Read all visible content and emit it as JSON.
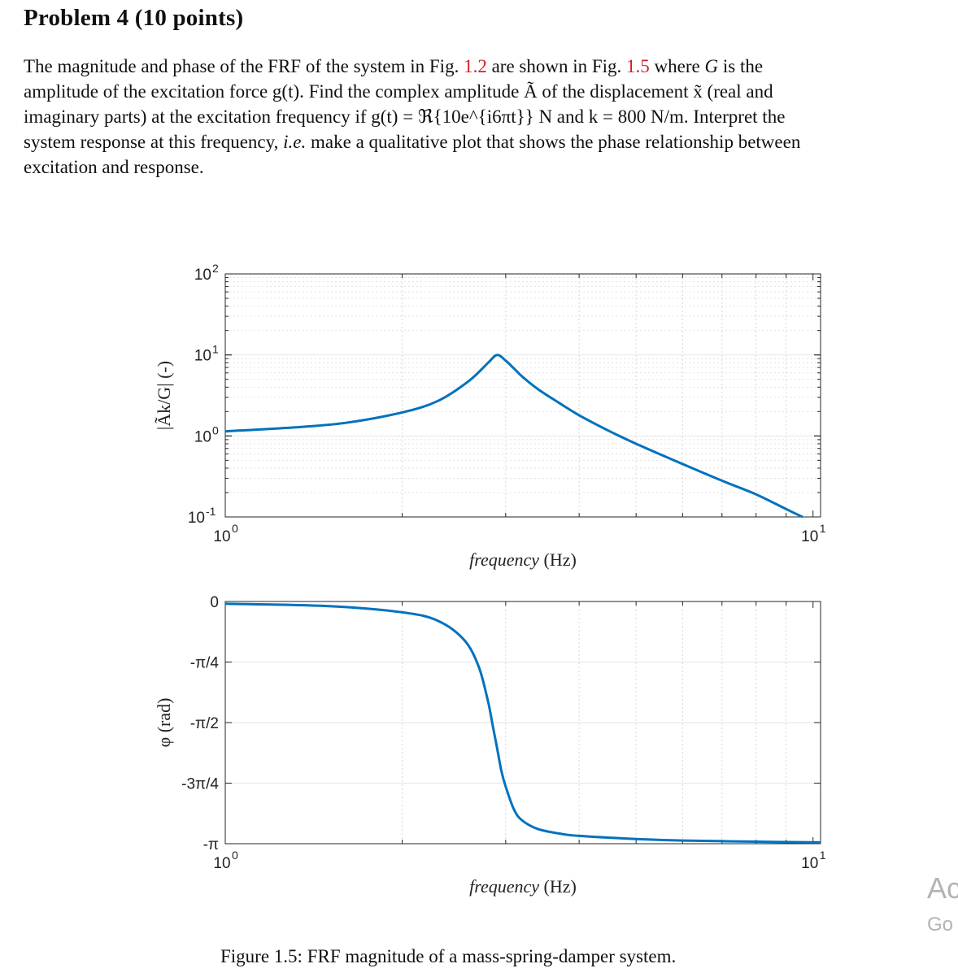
{
  "document": {
    "heading": "Problem 4 (10 points)",
    "paragraph": {
      "l1_a": "The magnitude and phase of the FRF of the system in Fig. ",
      "l1_ref1": "1.2",
      "l1_b": " are shown in Fig. ",
      "l1_ref2": "1.5",
      "l1_c": " where ",
      "l1_G": "G",
      "l1_d": " is the",
      "l2": "amplitude of the excitation force g(t). Find the complex amplitude Ã of the displacement x̃ (real and",
      "l3": "imaginary parts) at the excitation frequency if g(t) = ℜ{10e^{i6πt}} N and k = 800 N/m. Interpret the",
      "l4_a": "system response at this frequency, ",
      "l4_ie": "i.e.",
      "l4_b": " make a qualitative plot that shows the phase relationship between",
      "l5": "excitation and response."
    },
    "caption": "Figure 1.5: FRF magnitude of a mass-spring-damper system.",
    "watermark": {
      "line1": "Ac",
      "line2": "Go"
    }
  },
  "chart_data": [
    {
      "type": "line",
      "name": "magnitude",
      "x_scale": "log",
      "y_scale": "log",
      "xlim": [
        1,
        10.3
      ],
      "ylim": [
        0.1,
        100
      ],
      "xticks": [
        {
          "v": 1,
          "label": "10",
          "exp": "0"
        },
        {
          "v": 10,
          "label": "10",
          "exp": "1"
        }
      ],
      "yticks": [
        {
          "v": 100,
          "label": "10",
          "exp": "2"
        },
        {
          "v": 10,
          "label": "10",
          "exp": "1"
        },
        {
          "v": 1,
          "label": "10",
          "exp": "0"
        },
        {
          "v": 0.1,
          "label": "10",
          "exp": "-1"
        }
      ],
      "xlabel": "frequency (Hz)",
      "ylabel": "|Ãk/G| (-)",
      "grid": true,
      "line_color": "#0072bd",
      "x": [
        1.0,
        1.3,
        1.6,
        2.0,
        2.3,
        2.6,
        2.8,
        2.9,
        3.0,
        3.1,
        3.2,
        3.4,
        3.7,
        4.0,
        4.5,
        5.0,
        6.0,
        7.0,
        8.0,
        9.0,
        9.6
      ],
      "y": [
        1.14,
        1.27,
        1.45,
        1.95,
        2.7,
        4.8,
        8.0,
        10.0,
        8.5,
        6.8,
        5.4,
        3.8,
        2.55,
        1.8,
        1.15,
        0.8,
        0.45,
        0.28,
        0.19,
        0.125,
        0.1
      ]
    },
    {
      "type": "line",
      "name": "phase",
      "x_scale": "log",
      "xlim": [
        1,
        10.3
      ],
      "ylim": [
        -3.14159,
        0
      ],
      "xticks": [
        {
          "v": 1,
          "label": "10",
          "exp": "0"
        },
        {
          "v": 10,
          "label": "10",
          "exp": "1"
        }
      ],
      "yticks": [
        {
          "v": 0,
          "label": "0"
        },
        {
          "v": -0.7854,
          "label": "-π/4"
        },
        {
          "v": -1.5708,
          "label": "-π/2"
        },
        {
          "v": -2.3562,
          "label": "-3π/4"
        },
        {
          "v": -3.14159,
          "label": "-π"
        }
      ],
      "xlabel": "frequency (Hz)",
      "ylabel": "φ (rad)",
      "grid": true,
      "line_color": "#0072bd",
      "x": [
        1.0,
        1.5,
        2.0,
        2.3,
        2.55,
        2.7,
        2.8,
        2.85,
        2.9,
        2.95,
        3.0,
        3.1,
        3.2,
        3.4,
        3.7,
        4.0,
        5.0,
        6.0,
        8.0,
        10.3
      ],
      "y": [
        -0.03,
        -0.06,
        -0.14,
        -0.25,
        -0.5,
        -0.85,
        -1.3,
        -1.6,
        -1.9,
        -2.2,
        -2.4,
        -2.7,
        -2.84,
        -2.95,
        -3.01,
        -3.04,
        -3.08,
        -3.1,
        -3.115,
        -3.125
      ]
    }
  ]
}
